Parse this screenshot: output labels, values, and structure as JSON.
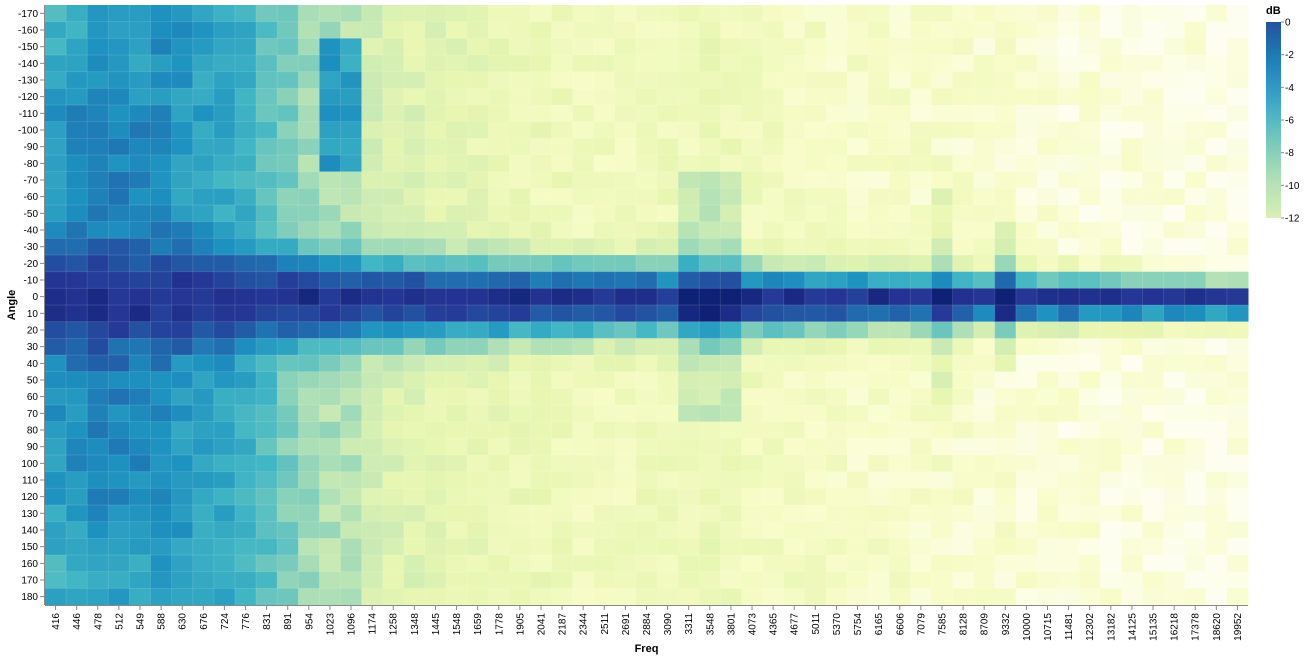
{
  "chart_data": {
    "type": "heatmap",
    "xlabel": "Freq",
    "ylabel": "Angle",
    "x": [
      "416",
      "446",
      "478",
      "512",
      "549",
      "588",
      "630",
      "676",
      "724",
      "776",
      "831",
      "891",
      "954",
      "1023",
      "1096",
      "1174",
      "1258",
      "1348",
      "1445",
      "1548",
      "1659",
      "1778",
      "1905",
      "2041",
      "2187",
      "2344",
      "2511",
      "2691",
      "2884",
      "3090",
      "3311",
      "3548",
      "3801",
      "4073",
      "4365",
      "4677",
      "5011",
      "5370",
      "5754",
      "6165",
      "6606",
      "7079",
      "7585",
      "8128",
      "8709",
      "9332",
      "10000",
      "10715",
      "11481",
      "12302",
      "13182",
      "14125",
      "15135",
      "16218",
      "17378",
      "18620",
      "19952"
    ],
    "y": [
      -170,
      -160,
      -150,
      -140,
      -130,
      -120,
      -110,
      -100,
      -90,
      -80,
      -70,
      -60,
      -50,
      -40,
      -30,
      -20,
      -10,
      0,
      10,
      20,
      30,
      40,
      50,
      60,
      70,
      80,
      90,
      100,
      110,
      120,
      130,
      140,
      150,
      160,
      170,
      180
    ],
    "legend": {
      "title": "dB",
      "ticks": [
        0,
        -2,
        -4,
        -6,
        -8,
        -10,
        -12
      ],
      "min": -12,
      "max": 0,
      "placement": "top-right",
      "colors": [
        "#d8efb4",
        "#b0dfb5",
        "#73c8bd",
        "#3aa7c9",
        "#1f80b8",
        "#23529f"
      ]
    },
    "colorscale": {
      "stops": [
        "#ffffff",
        "#f8fcc8",
        "#e7f6b1",
        "#c7e9b4",
        "#7fcdbb",
        "#41b6c4",
        "#1d91c0",
        "#225ea8",
        "#253494",
        "#0b1d6e"
      ],
      "domain": [
        -15.5,
        1.5
      ]
    },
    "freq_anchors": [
      [
        416,
        -4.5
      ],
      [
        446,
        -4.0
      ],
      [
        478,
        -3.6
      ],
      [
        512,
        -3.8
      ],
      [
        549,
        -4.0
      ],
      [
        588,
        -4.2
      ],
      [
        630,
        -4.6
      ],
      [
        676,
        -5.0
      ],
      [
        724,
        -5.4
      ],
      [
        776,
        -5.8
      ],
      [
        831,
        -6.8
      ],
      [
        891,
        -7.8
      ],
      [
        954,
        -8.8
      ],
      [
        1023,
        -9.2
      ],
      [
        1096,
        -9.5
      ],
      [
        1174,
        -10.5
      ],
      [
        1258,
        -11.0
      ],
      [
        1348,
        -11.2
      ],
      [
        1445,
        -11.4
      ],
      [
        1548,
        -11.6
      ],
      [
        1659,
        -11.8
      ],
      [
        1778,
        -12.0
      ],
      [
        1905,
        -12.2
      ],
      [
        2041,
        -12.4
      ],
      [
        2187,
        -12.6
      ],
      [
        2344,
        -12.8
      ],
      [
        2511,
        -12.8
      ],
      [
        2691,
        -12.8
      ],
      [
        2884,
        -12.6
      ],
      [
        3090,
        -12.6
      ],
      [
        3311,
        -12.5
      ],
      [
        3548,
        -12.3
      ],
      [
        3801,
        -12.5
      ],
      [
        4073,
        -12.8
      ],
      [
        4365,
        -13.0
      ],
      [
        4677,
        -13.1
      ],
      [
        5011,
        -13.2
      ],
      [
        5370,
        -13.3
      ],
      [
        5754,
        -13.4
      ],
      [
        6165,
        -13.5
      ],
      [
        6606,
        -13.5
      ],
      [
        7079,
        -13.6
      ],
      [
        7585,
        -13.5
      ],
      [
        8128,
        -13.7
      ],
      [
        8709,
        -13.8
      ],
      [
        9332,
        -13.8
      ],
      [
        10000,
        -14.0
      ],
      [
        10715,
        -14.1
      ],
      [
        11481,
        -14.2
      ],
      [
        12302,
        -14.3
      ],
      [
        13182,
        -14.4
      ],
      [
        14125,
        -14.4
      ],
      [
        15135,
        -14.5
      ],
      [
        16218,
        -14.5
      ],
      [
        17378,
        -14.5
      ],
      [
        18620,
        -14.6
      ],
      [
        19952,
        -14.6
      ]
    ]
  }
}
